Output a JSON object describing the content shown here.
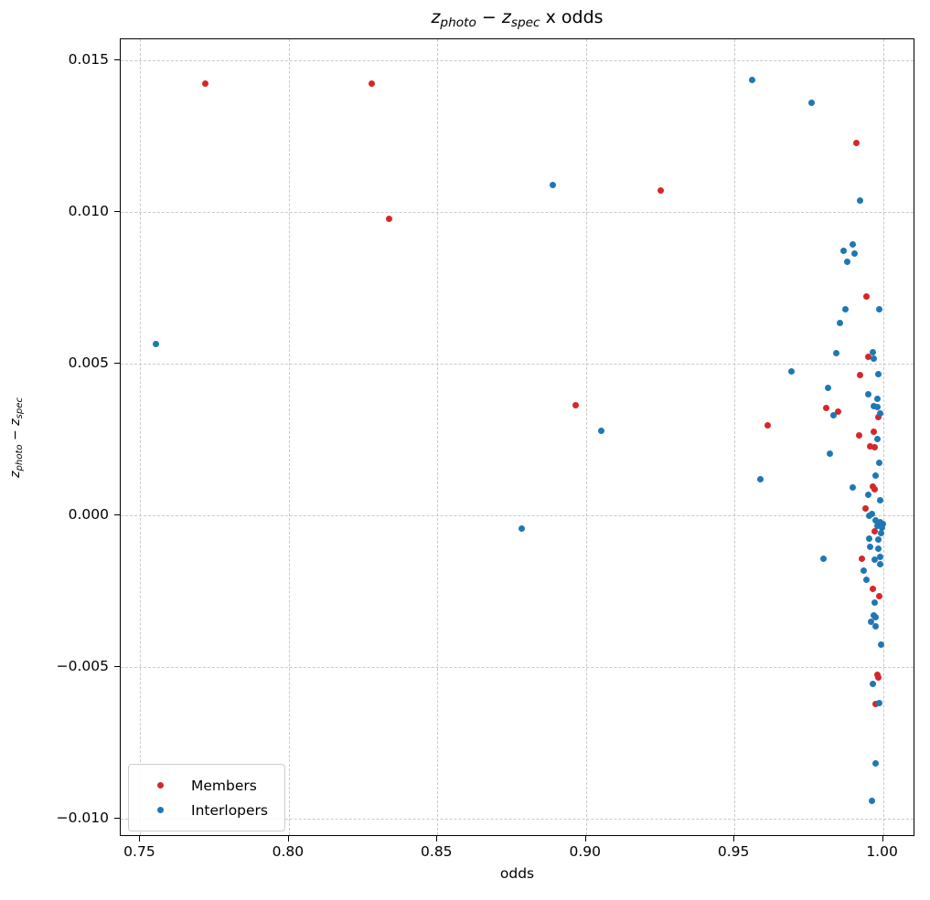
{
  "figure": {
    "title_segments": [
      {
        "text": "z",
        "style": "italic"
      },
      {
        "text": "photo",
        "style": "subscript"
      },
      {
        "text": " − ",
        "style": "normal"
      },
      {
        "text": "z",
        "style": "italic"
      },
      {
        "text": "spec",
        "style": "subscript"
      },
      {
        "text": " x odds",
        "style": "normal"
      }
    ],
    "xlabel": "odds",
    "ylabel_segments": [
      {
        "text": "z",
        "style": "italic"
      },
      {
        "text": "photo",
        "style": "subscript"
      },
      {
        "text": " − ",
        "style": "normal"
      },
      {
        "text": "z",
        "style": "italic"
      },
      {
        "text": "spec",
        "style": "subscript"
      }
    ]
  },
  "axes": {
    "xlim": [
      0.7434,
      1.0109
    ],
    "ylim": [
      -0.0106,
      0.01569
    ],
    "xticks": [
      {
        "value": 0.75,
        "label": "0.75"
      },
      {
        "value": 0.8,
        "label": "0.80"
      },
      {
        "value": 0.85,
        "label": "0.85"
      },
      {
        "value": 0.9,
        "label": "0.90"
      },
      {
        "value": 0.95,
        "label": "0.95"
      },
      {
        "value": 1.0,
        "label": "1.00"
      }
    ],
    "yticks": [
      {
        "value": 0.015,
        "label": "0.015"
      },
      {
        "value": 0.01,
        "label": "0.010"
      },
      {
        "value": 0.005,
        "label": "0.005"
      },
      {
        "value": 0.0,
        "label": "0.000"
      },
      {
        "value": -0.005,
        "label": "−0.005"
      },
      {
        "value": -0.01,
        "label": "−0.010"
      }
    ]
  },
  "legend": {
    "items": [
      {
        "label": "Members",
        "color": "#d62728"
      },
      {
        "label": "Interlopers",
        "color": "#1f77b4"
      }
    ]
  },
  "chart_data": {
    "type": "scatter",
    "title": "z_photo − z_spec x odds",
    "xlabel": "odds",
    "ylabel": "z_photo − z_spec",
    "xlim": [
      0.7434,
      1.0109
    ],
    "ylim": [
      -0.0106,
      0.01569
    ],
    "grid": true,
    "grid_style": "dashed",
    "legend_position": "lower left",
    "marker_size_px": 7,
    "series": [
      {
        "name": "Members",
        "color": "#d62728",
        "points": [
          [
            0.772,
            0.01423
          ],
          [
            0.828,
            0.01423
          ],
          [
            0.8336,
            0.00976
          ],
          [
            0.9253,
            0.01072
          ],
          [
            0.9909,
            0.01226
          ],
          [
            0.8964,
            0.00364
          ],
          [
            0.9613,
            0.00298
          ],
          [
            0.9945,
            0.00721
          ],
          [
            0.995,
            0.00524
          ],
          [
            0.9924,
            0.00462
          ],
          [
            0.981,
            0.00355
          ],
          [
            0.985,
            0.00343
          ],
          [
            0.9983,
            0.00325
          ],
          [
            0.992,
            0.00265
          ],
          [
            0.9968,
            0.00277
          ],
          [
            0.9958,
            0.00227
          ],
          [
            0.9973,
            0.00223
          ],
          [
            0.9966,
            0.00094
          ],
          [
            0.9973,
            0.00086
          ],
          [
            0.994,
            0.00023
          ],
          [
            0.9973,
            -0.00052
          ],
          [
            0.9928,
            -0.00143
          ],
          [
            0.9966,
            -0.00242
          ],
          [
            0.9986,
            -0.00267
          ],
          [
            0.9981,
            -0.00524
          ],
          [
            0.9983,
            -0.00536
          ],
          [
            0.9976,
            -0.00621
          ]
        ]
      },
      {
        "name": "Interlopers",
        "color": "#1f77b4",
        "points": [
          [
            0.7554,
            0.00566
          ],
          [
            0.889,
            0.0109
          ],
          [
            0.9053,
            0.0028
          ],
          [
            0.8783,
            -0.00044
          ],
          [
            0.9558,
            0.01434
          ],
          [
            0.9761,
            0.01361
          ],
          [
            0.9923,
            0.01036
          ],
          [
            0.9899,
            0.00893
          ],
          [
            0.9866,
            0.00872
          ],
          [
            0.9904,
            0.00864
          ],
          [
            0.9881,
            0.00837
          ],
          [
            0.9874,
            0.00678
          ],
          [
            0.9986,
            0.00678
          ],
          [
            0.9854,
            0.00633
          ],
          [
            0.9844,
            0.00536
          ],
          [
            0.9966,
            0.00538
          ],
          [
            0.9968,
            0.00516
          ],
          [
            0.9693,
            0.00473
          ],
          [
            0.9985,
            0.00466
          ],
          [
            0.9816,
            0.00419
          ],
          [
            0.9952,
            0.00398
          ],
          [
            0.9982,
            0.00384
          ],
          [
            0.9832,
            0.00329
          ],
          [
            0.9968,
            0.00359
          ],
          [
            0.9981,
            0.00358
          ],
          [
            0.999,
            0.00336
          ],
          [
            0.9981,
            0.0025
          ],
          [
            0.982,
            0.00204
          ],
          [
            0.9586,
            0.0012
          ],
          [
            0.9899,
            0.00091
          ],
          [
            0.9986,
            0.00172
          ],
          [
            0.9976,
            0.00132
          ],
          [
            0.9952,
            0.00068
          ],
          [
            0.9989,
            0.00051
          ],
          [
            0.9964,
            5e-05
          ],
          [
            0.9953,
            0.0
          ],
          [
            0.9976,
            -0.00017
          ],
          [
            0.9989,
            -0.00022
          ],
          [
            0.9999,
            -0.00028
          ],
          [
            0.9981,
            -0.00035
          ],
          [
            0.9996,
            -0.0004
          ],
          [
            0.9994,
            -0.0006
          ],
          [
            0.9955,
            -0.00077
          ],
          [
            0.9983,
            -0.0008
          ],
          [
            0.9958,
            -0.00105
          ],
          [
            0.9985,
            -0.0011
          ],
          [
            0.9799,
            -0.00142
          ],
          [
            0.9989,
            -0.00138
          ],
          [
            0.9971,
            -0.00145
          ],
          [
            0.9989,
            -0.0016
          ],
          [
            0.9936,
            -0.00183
          ],
          [
            0.9943,
            -0.00212
          ],
          [
            0.9971,
            -0.00287
          ],
          [
            0.9968,
            -0.00329
          ],
          [
            0.9976,
            -0.00337
          ],
          [
            0.996,
            -0.00352
          ],
          [
            0.9974,
            -0.00365
          ],
          [
            0.9995,
            -0.00425
          ],
          [
            0.9965,
            -0.00556
          ],
          [
            0.9986,
            -0.00618
          ],
          [
            0.9974,
            -0.00819
          ],
          [
            0.9962,
            -0.00941
          ]
        ]
      }
    ]
  }
}
